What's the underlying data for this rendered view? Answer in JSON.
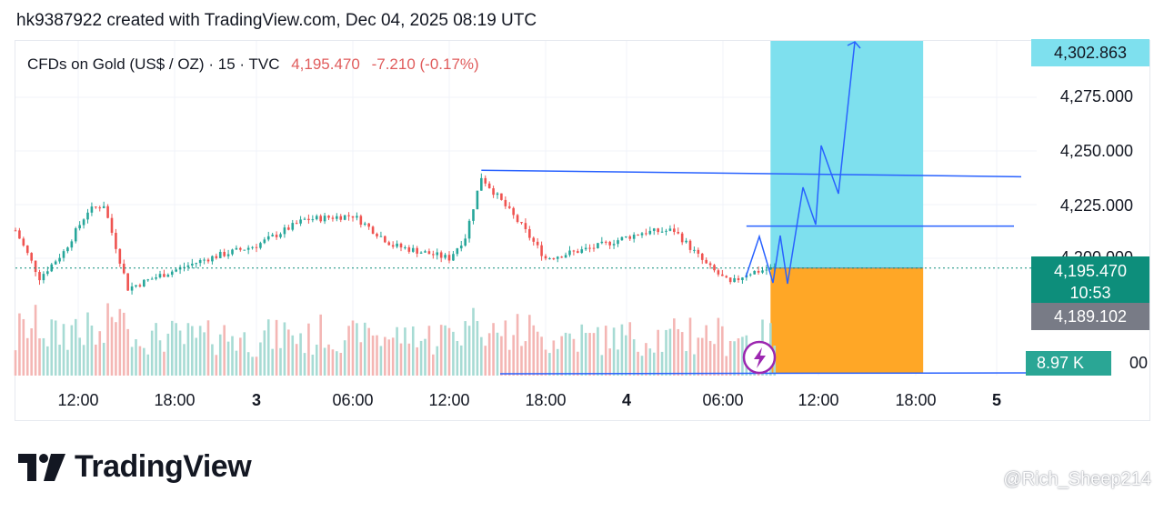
{
  "header": {
    "title": "hk9387922 created with TradingView.com, Dec 04, 2025 08:19 UTC"
  },
  "symbol": {
    "name": "CFDs on Gold (US$ / OZ)",
    "interval": "15",
    "source": "TVC",
    "last_price": "4,195.470",
    "change": "-7.210 (-0.17%)"
  },
  "price_badges": {
    "target": "4,302.863",
    "last_price": "4,195.470",
    "countdown": "10:53",
    "stop": "4,189.102",
    "volume": "8.97 K",
    "volume_tail": "00"
  },
  "brand": {
    "name": "TradingView"
  },
  "watermark": {
    "text": "@Rich_Sheep214"
  },
  "colors": {
    "up": "#26a69a",
    "down": "#ef5350",
    "drawing": "#2962ff",
    "target_zone": "#7ee0ee",
    "stop_zone": "#ffa726",
    "last_price_line": "#0d8e7b"
  },
  "chart_data": {
    "type": "candlestick",
    "symbol": "CFDs on Gold (US$ / OZ)",
    "timeframe": "15",
    "y_axis": {
      "labels": [
        "4,275.000",
        "4,250.000",
        "4,225.000",
        "4,200.000"
      ],
      "range": [
        4175,
        4305
      ]
    },
    "x_axis": {
      "labels": [
        "12:00",
        "18:00",
        "3",
        "06:00",
        "12:00",
        "18:00",
        "4",
        "06:00",
        "12:00",
        "18:00",
        "5"
      ]
    },
    "approx_close_path": [
      {
        "t": "Dec 2 09:00",
        "close": 4213
      },
      {
        "t": "Dec 2 10:30",
        "close": 4191
      },
      {
        "t": "Dec 2 12:00",
        "close": 4203
      },
      {
        "t": "Dec 2 13:30",
        "close": 4222
      },
      {
        "t": "Dec 2 14:30",
        "close": 4225
      },
      {
        "t": "Dec 2 16:00",
        "close": 4186
      },
      {
        "t": "Dec 2 18:00",
        "close": 4192
      },
      {
        "t": "Dec 2 21:00",
        "close": 4200
      },
      {
        "t": "Dec 3 00:00",
        "close": 4206
      },
      {
        "t": "Dec 3 03:00",
        "close": 4218
      },
      {
        "t": "Dec 3 06:00",
        "close": 4220
      },
      {
        "t": "Dec 3 08:30",
        "close": 4206
      },
      {
        "t": "Dec 3 12:00",
        "close": 4200
      },
      {
        "t": "Dec 3 13:00",
        "close": 4210
      },
      {
        "t": "Dec 3 14:00",
        "close": 4238
      },
      {
        "t": "Dec 3 16:30",
        "close": 4215
      },
      {
        "t": "Dec 3 18:00",
        "close": 4200
      },
      {
        "t": "Dec 3 21:00",
        "close": 4205
      },
      {
        "t": "Dec 4 00:00",
        "close": 4212
      },
      {
        "t": "Dec 4 02:00",
        "close": 4213
      },
      {
        "t": "Dec 4 04:00",
        "close": 4197
      },
      {
        "t": "Dec 4 05:30",
        "close": 4188
      },
      {
        "t": "Dec 4 06:30",
        "close": 4193
      },
      {
        "t": "Dec 4 08:15",
        "close": 4195.47
      }
    ],
    "long_position": {
      "entry": 4195.47,
      "target": 4302.863,
      "stop": 4189.102
    },
    "annotations": [
      "resistance trendline ~4241 → ~4238",
      "horizontal line ~4215",
      "projected zig-zag arrow to ~4303"
    ],
    "volume_last": "8.97 K"
  }
}
